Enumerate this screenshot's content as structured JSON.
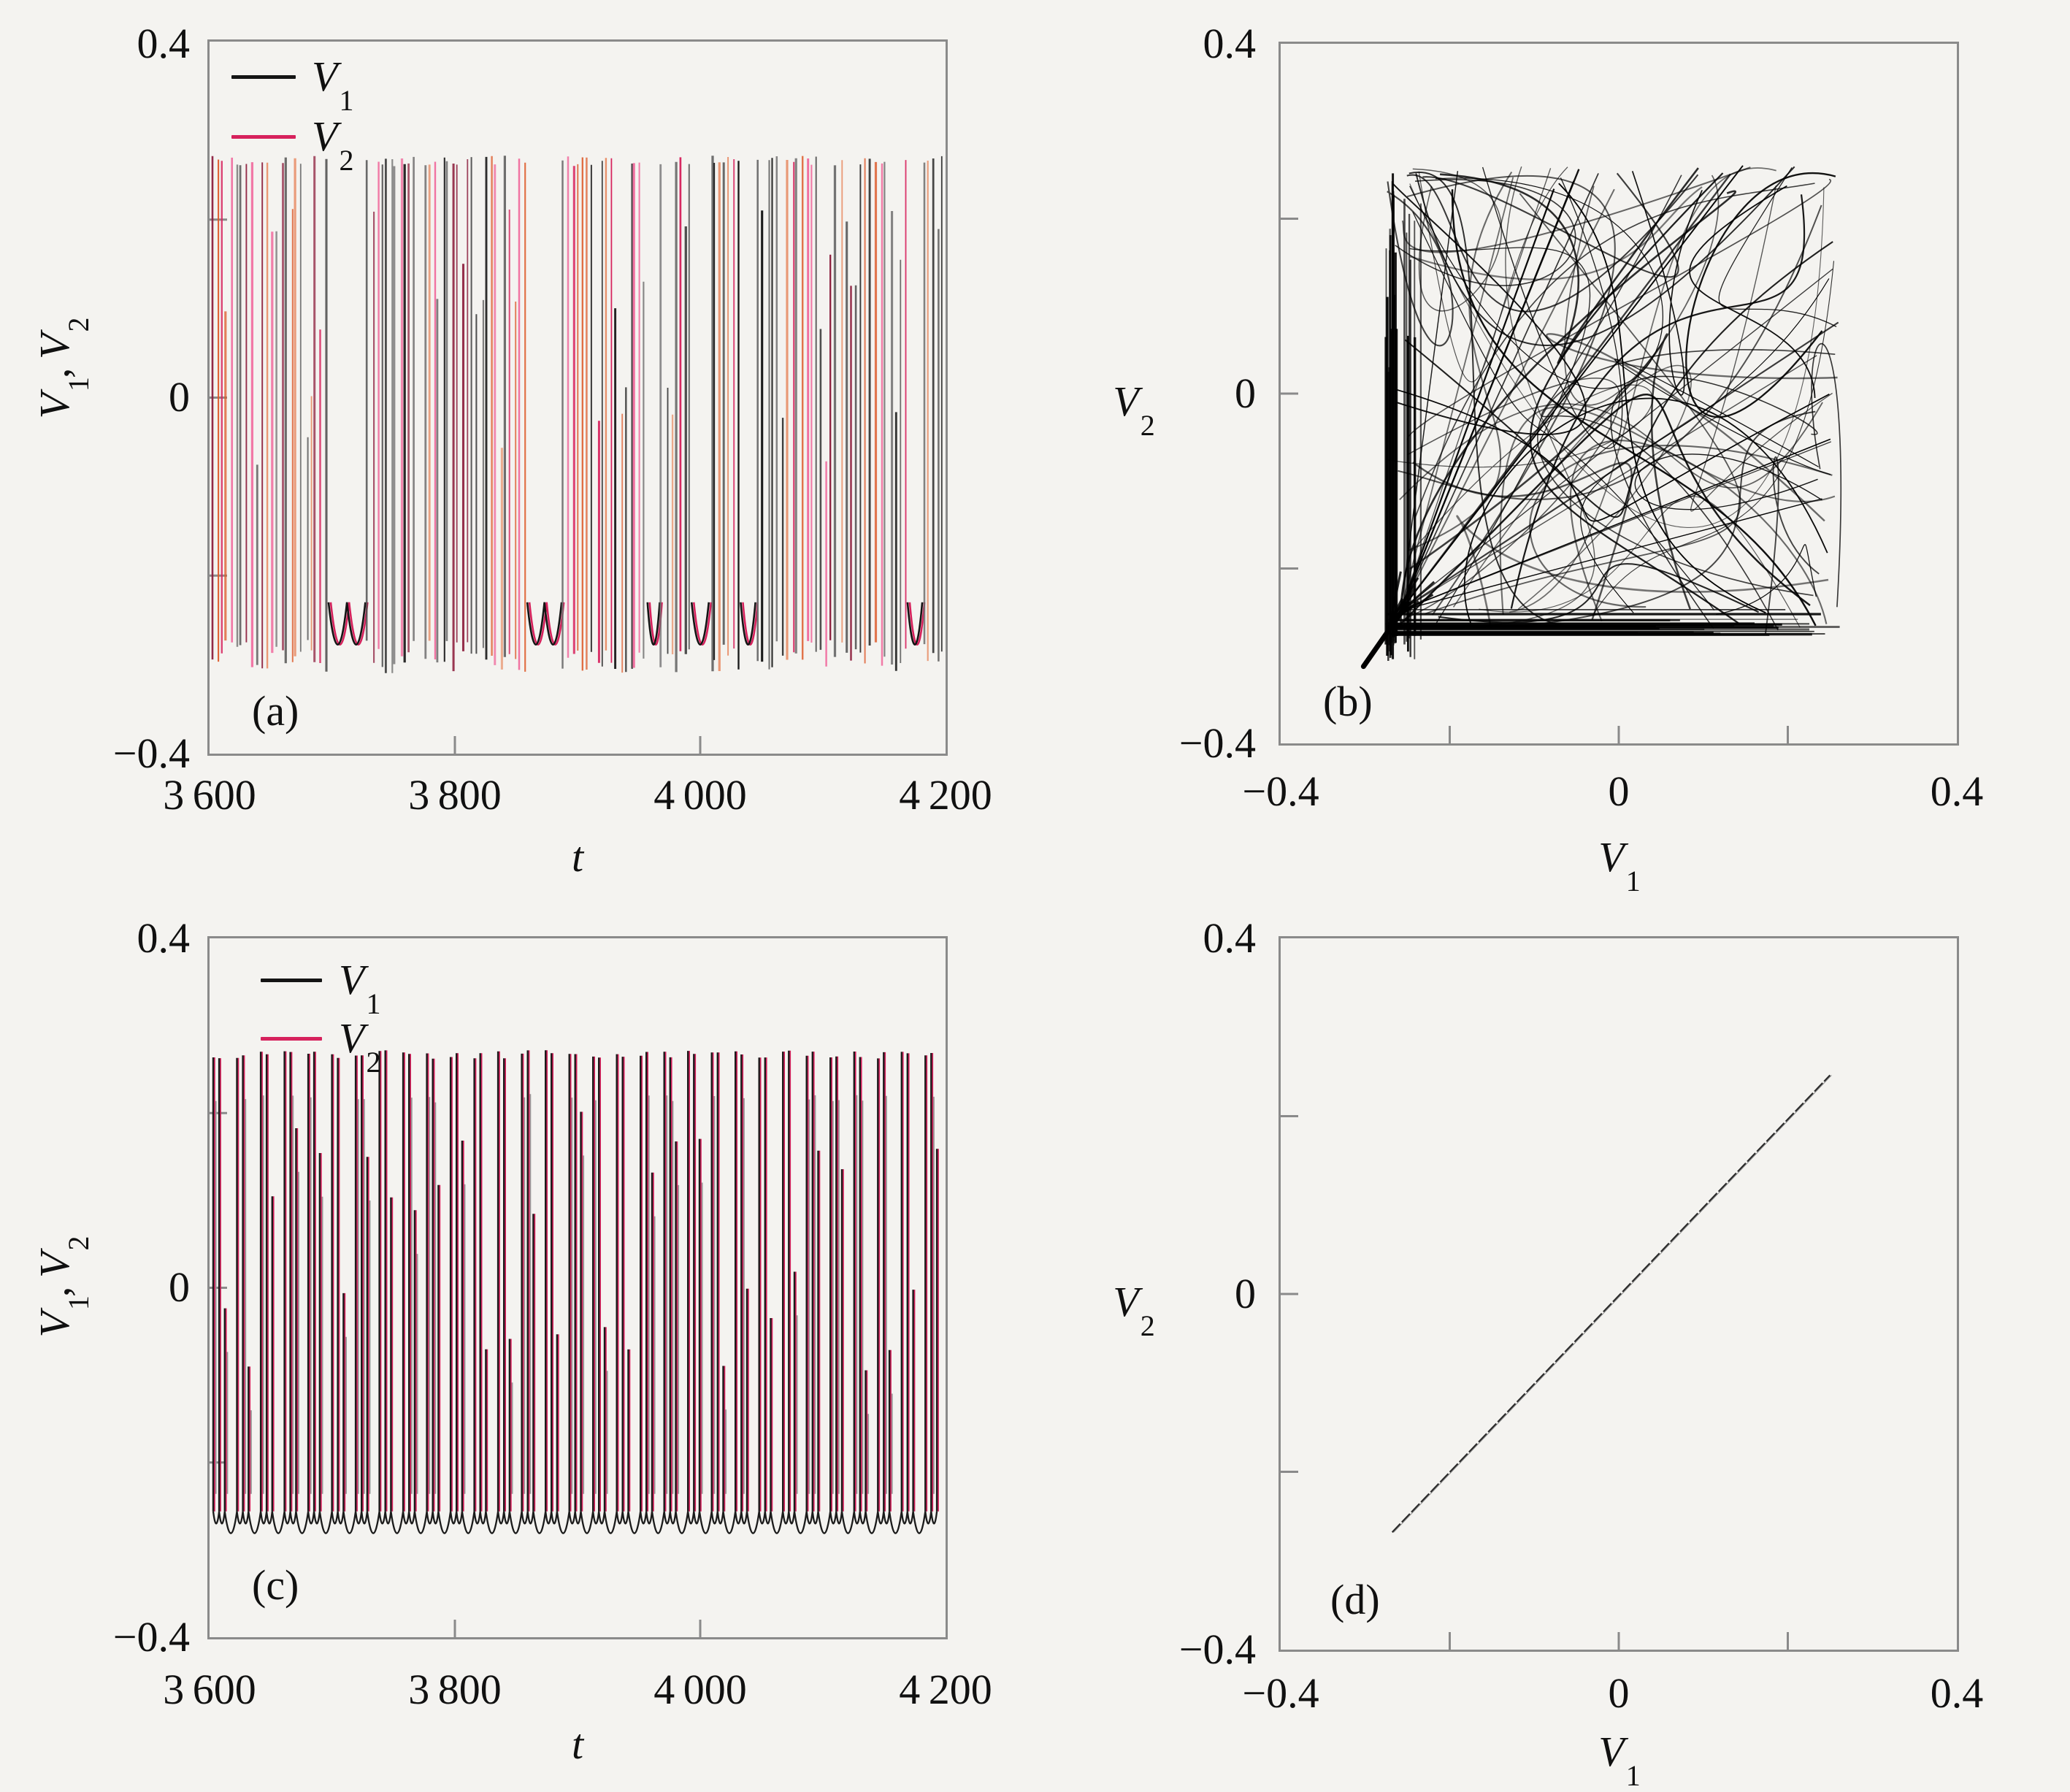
{
  "figure": {
    "background": "#f4f3f0",
    "frame_color": "#8a8a8a",
    "text_color": "#101010",
    "description": "Four-panel figure: membrane potentials V1, V2 vs time t (panels a, c) and phase portraits V2 vs V1 (panels b, d)."
  },
  "chart_data": [
    {
      "id": "a",
      "tag": "(a)",
      "type": "line",
      "kind": "spike_train_chaotic",
      "xlabel": "t",
      "ylabel_parts": {
        "v1": "V",
        "s1": "1",
        "comma": ", ",
        "v2": "V",
        "s2": "2"
      },
      "xlim": [
        3600,
        4200
      ],
      "ylim": [
        -0.4,
        0.4
      ],
      "xticks": [
        {
          "v": 3600,
          "label": "3 600"
        },
        {
          "v": 3800,
          "label": "3 800"
        },
        {
          "v": 4000,
          "label": "4 000"
        },
        {
          "v": 4200,
          "label": "4 200"
        }
      ],
      "yticks": [
        {
          "v": 0.4,
          "label": "0.4"
        },
        {
          "v": 0,
          "label": "0"
        },
        {
          "v": -0.4,
          "label": "−0.4"
        }
      ],
      "inner_xticks": [
        3800,
        4000
      ],
      "inner_yticks": [
        0.2,
        0,
        -0.2
      ],
      "legend": [
        {
          "name": "V1",
          "var": "V",
          "sub": "1",
          "color": "#141414"
        },
        {
          "name": "V2",
          "var": "V",
          "sub": "2",
          "color": "#d6215c"
        }
      ],
      "series": [
        {
          "name": "V1",
          "colors": [
            "#141414",
            "#4a4a4a",
            "#6d6d6d"
          ]
        },
        {
          "name": "V2",
          "colors": [
            "#d6215c",
            "#f0699c",
            "#8d1f3e",
            "#dd5a2a",
            "#e8906a"
          ]
        }
      ],
      "baseline": -0.26,
      "dip_level": -0.305,
      "spike_top": 0.272,
      "burst_windows": [
        [
          3600,
          3697
        ],
        [
          3727,
          3769
        ],
        [
          3773,
          3859
        ],
        [
          3887,
          3957
        ],
        [
          3967,
          3993
        ],
        [
          4007,
          4033
        ],
        [
          4045,
          4169
        ],
        [
          4181,
          4200
        ]
      ],
      "spike_spacing_t": 4.0,
      "seed": 7,
      "grid": false,
      "legend_position": "top-left",
      "description": "Unsynchronized chaotic bursting: V1 (black) and V2 (crimson) spike trains overlap irregularly; spikes rise to ~0.27, subthreshold troughs near -0.30."
    },
    {
      "id": "b",
      "tag": "(b)",
      "type": "scatter",
      "kind": "attractor",
      "xlabel_parts": {
        "v": "V",
        "s": "1"
      },
      "ylabel_parts": {
        "v": "V",
        "s": "2"
      },
      "xlim": [
        -0.4,
        0.4
      ],
      "ylim": [
        -0.4,
        0.4
      ],
      "xticks": [
        {
          "v": -0.4,
          "label": "−0.4"
        },
        {
          "v": 0,
          "label": "0"
        },
        {
          "v": 0.4,
          "label": "0.4"
        }
      ],
      "yticks": [
        {
          "v": 0.4,
          "label": "0.4"
        },
        {
          "v": 0,
          "label": "0"
        },
        {
          "v": -0.4,
          "label": "−0.4"
        }
      ],
      "inner_xticks": [
        -0.2,
        0,
        0.2
      ],
      "inner_yticks": [
        -0.2,
        0,
        0.2
      ],
      "attractor": {
        "range": [
          -0.276,
          0.262
        ],
        "corner": [
          -0.258,
          -0.248
        ],
        "tail_start": [
          -0.302,
          -0.312
        ],
        "n_sweep_curves": 64,
        "n_fan_lines": 16,
        "n_left_band": 26,
        "n_bottom_band": 26,
        "color": "#000000"
      },
      "seed": 3,
      "grid": false,
      "description": "Phase portrait V2 vs V1 for the chaotic state: trajectories fill the square between about -0.28 and 0.26 with dense bands along the left and bottom edges and a tail toward (-0.30, -0.31)."
    },
    {
      "id": "c",
      "tag": "(c)",
      "type": "line",
      "kind": "spike_train_periodic",
      "xlabel": "t",
      "ylabel_parts": {
        "v1": "V",
        "s1": "1",
        "comma": ", ",
        "v2": "V",
        "s2": "2"
      },
      "xlim": [
        3600,
        4200
      ],
      "ylim": [
        -0.4,
        0.4
      ],
      "xticks": [
        {
          "v": 3600,
          "label": "3 600"
        },
        {
          "v": 3800,
          "label": "3 800"
        },
        {
          "v": 4000,
          "label": "4 000"
        },
        {
          "v": 4200,
          "label": "4 200"
        }
      ],
      "yticks": [
        {
          "v": 0.4,
          "label": "0.4"
        },
        {
          "v": 0,
          "label": "0"
        },
        {
          "v": -0.4,
          "label": "−0.4"
        }
      ],
      "inner_xticks": [
        3800,
        4000
      ],
      "inner_yticks": [
        0.2,
        0,
        -0.2
      ],
      "legend": [
        {
          "name": "V1",
          "var": "V",
          "sub": "1",
          "color": "#141414"
        },
        {
          "name": "V2",
          "var": "V",
          "sub": "2",
          "color": "#d6215c"
        }
      ],
      "series": [
        {
          "name": "V1",
          "colors": [
            "#1b1b1b"
          ]
        },
        {
          "name": "V2",
          "colors": [
            "#d6215c"
          ]
        }
      ],
      "baseline": -0.256,
      "dip_level": -0.306,
      "spike_top": 0.272,
      "pattern": {
        "t_start": 3603,
        "period": 19.35,
        "n_clusters": 31,
        "spike_offsets": [
          0,
          4.8,
          9.4
        ]
      },
      "seed": 11,
      "grid": false,
      "legend_position": "top-left",
      "description": "Synchronized periodic bursting: V1 and V2 coincide (black trace covers crimson); regular clusters of spikes reaching ~0.27 with troughs near -0.30."
    },
    {
      "id": "d",
      "tag": "(d)",
      "type": "line",
      "kind": "diagonal",
      "xlabel_parts": {
        "v": "V",
        "s": "1"
      },
      "ylabel_parts": {
        "v": "V",
        "s": "2"
      },
      "xlim": [
        -0.4,
        0.4
      ],
      "ylim": [
        -0.4,
        0.4
      ],
      "xticks": [
        {
          "v": -0.4,
          "label": "−0.4"
        },
        {
          "v": 0,
          "label": "0"
        },
        {
          "v": 0.4,
          "label": "0.4"
        }
      ],
      "yticks": [
        {
          "v": 0.4,
          "label": "0.4"
        },
        {
          "v": 0,
          "label": "0"
        },
        {
          "v": -0.4,
          "label": "−0.4"
        }
      ],
      "inner_xticks": [
        -0.2,
        0,
        0.2
      ],
      "inner_yticks": [
        -0.2,
        0,
        0.2
      ],
      "line_points": [
        [
          -0.268,
          -0.268
        ],
        [
          0.25,
          0.246
        ]
      ],
      "line_color": "#2b2b2b",
      "seed": 5,
      "grid": false,
      "description": "Complete synchronization: V2 = V1 straight diagonal segment from (-0.27,-0.27) to (0.25,0.25)."
    }
  ]
}
